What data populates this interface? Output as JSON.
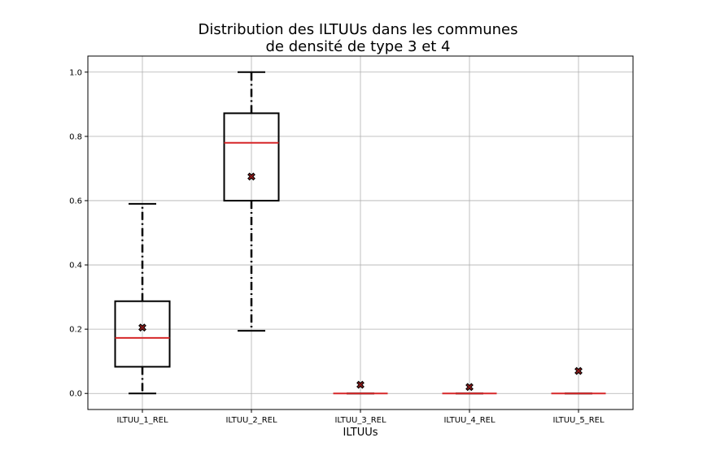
{
  "chart_data": {
    "type": "boxplot",
    "title_lines": [
      "Distribution des ILTUUs dans les communes",
      "de densité de type 3 et 4"
    ],
    "xlabel": "ILTUUs",
    "ylabel": "",
    "categories": [
      "ILTUU_1_REL",
      "ILTUU_2_REL",
      "ILTUU_3_REL",
      "ILTUU_4_REL",
      "ILTUU_5_REL"
    ],
    "ylim": [
      -0.05,
      1.05
    ],
    "yticks": [
      0.0,
      0.2,
      0.4,
      0.6,
      0.8,
      1.0
    ],
    "ytick_labels": [
      "0.0",
      "0.2",
      "0.4",
      "0.6",
      "0.8",
      "1.0"
    ],
    "grid": true,
    "boxes": [
      {
        "whisker_low": 0.0,
        "q1": 0.083,
        "median": 0.173,
        "q3": 0.287,
        "whisker_high": 0.59,
        "mean": 0.205
      },
      {
        "whisker_low": 0.195,
        "q1": 0.6,
        "median": 0.78,
        "q3": 0.872,
        "whisker_high": 1.0,
        "mean": 0.675
      },
      {
        "whisker_low": 0.0,
        "q1": 0.0,
        "median": 0.0,
        "q3": 0.0,
        "whisker_high": 0.0,
        "mean": 0.027
      },
      {
        "whisker_low": 0.0,
        "q1": 0.0,
        "median": 0.0,
        "q3": 0.0,
        "whisker_high": 0.0,
        "mean": 0.02
      },
      {
        "whisker_low": 0.0,
        "q1": 0.0,
        "median": 0.0,
        "q3": 0.0,
        "whisker_high": 0.0,
        "mean": 0.07
      }
    ],
    "colors": {
      "box": "#000000",
      "median": "#d62728",
      "mean_fill": "#8b1a1a",
      "grid": "#b0b0b0"
    }
  }
}
